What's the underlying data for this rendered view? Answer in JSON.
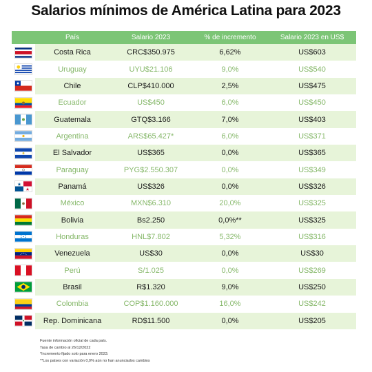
{
  "title": "Salarios mínimos de América Latina para 2023",
  "table": {
    "headers": [
      "País",
      "Salario 2023",
      "% de incremento",
      "Salario 2023 en US$"
    ],
    "rows": [
      {
        "flag": "costa-rica",
        "country": "Costa Rica",
        "salary": "CRC$350.975",
        "increase": "6,62%",
        "usd": "US$603"
      },
      {
        "flag": "uruguay",
        "country": "Uruguay",
        "salary": "UYU$21.106",
        "increase": "9,0%",
        "usd": "US$540"
      },
      {
        "flag": "chile",
        "country": "Chile",
        "salary": "CLP$410.000",
        "increase": "2,5%",
        "usd": "US$475"
      },
      {
        "flag": "ecuador",
        "country": "Ecuador",
        "salary": "US$450",
        "increase": "6,0%",
        "usd": "US$450"
      },
      {
        "flag": "guatemala",
        "country": "Guatemala",
        "salary": "GTQ$3.166",
        "increase": "7,0%",
        "usd": "US$403"
      },
      {
        "flag": "argentina",
        "country": "Argentina",
        "salary": "ARS$65.427*",
        "increase": "6,0%",
        "usd": "US$371"
      },
      {
        "flag": "el-salvador",
        "country": "El Salvador",
        "salary": "US$365",
        "increase": "0,0%",
        "usd": "US$365"
      },
      {
        "flag": "paraguay",
        "country": "Paraguay",
        "salary": "PYG$2.550.307",
        "increase": "0,0%",
        "usd": "US$349"
      },
      {
        "flag": "panama",
        "country": "Panamá",
        "salary": "US$326",
        "increase": "0,0%",
        "usd": "US$326"
      },
      {
        "flag": "mexico",
        "country": "México",
        "salary": "MXN$6.310",
        "increase": "20,0%",
        "usd": "US$325"
      },
      {
        "flag": "bolivia",
        "country": "Bolivia",
        "salary": "Bs2.250",
        "increase": "0,0%**",
        "usd": "US$325"
      },
      {
        "flag": "honduras",
        "country": "Honduras",
        "salary": "HNL$7.802",
        "increase": "5,32%",
        "usd": "US$316"
      },
      {
        "flag": "venezuela",
        "country": "Venezuela",
        "salary": "US$30",
        "increase": "0,0%",
        "usd": "US$30"
      },
      {
        "flag": "peru",
        "country": "Perú",
        "salary": "S/1.025",
        "increase": "0,0%",
        "usd": "US$269"
      },
      {
        "flag": "brasil",
        "country": "Brasil",
        "salary": "R$1.320",
        "increase": "9,0%",
        "usd": "US$250"
      },
      {
        "flag": "colombia",
        "country": "Colombia",
        "salary": "COP$1.160.000",
        "increase": "16,0%",
        "usd": "US$242"
      },
      {
        "flag": "rep-dominicana",
        "country": "Rep. Dominicana",
        "salary": "RD$11.500",
        "increase": "0,0%",
        "usd": "US$205"
      }
    ]
  },
  "notes": [
    "Fuente información oficial de cada país.",
    "Tasa de cambio al 26/12/2022",
    "*Incremento fijado solo para enero 2023.",
    "**Los países con variación 0,0% aún no han anunciados cambios"
  ]
}
